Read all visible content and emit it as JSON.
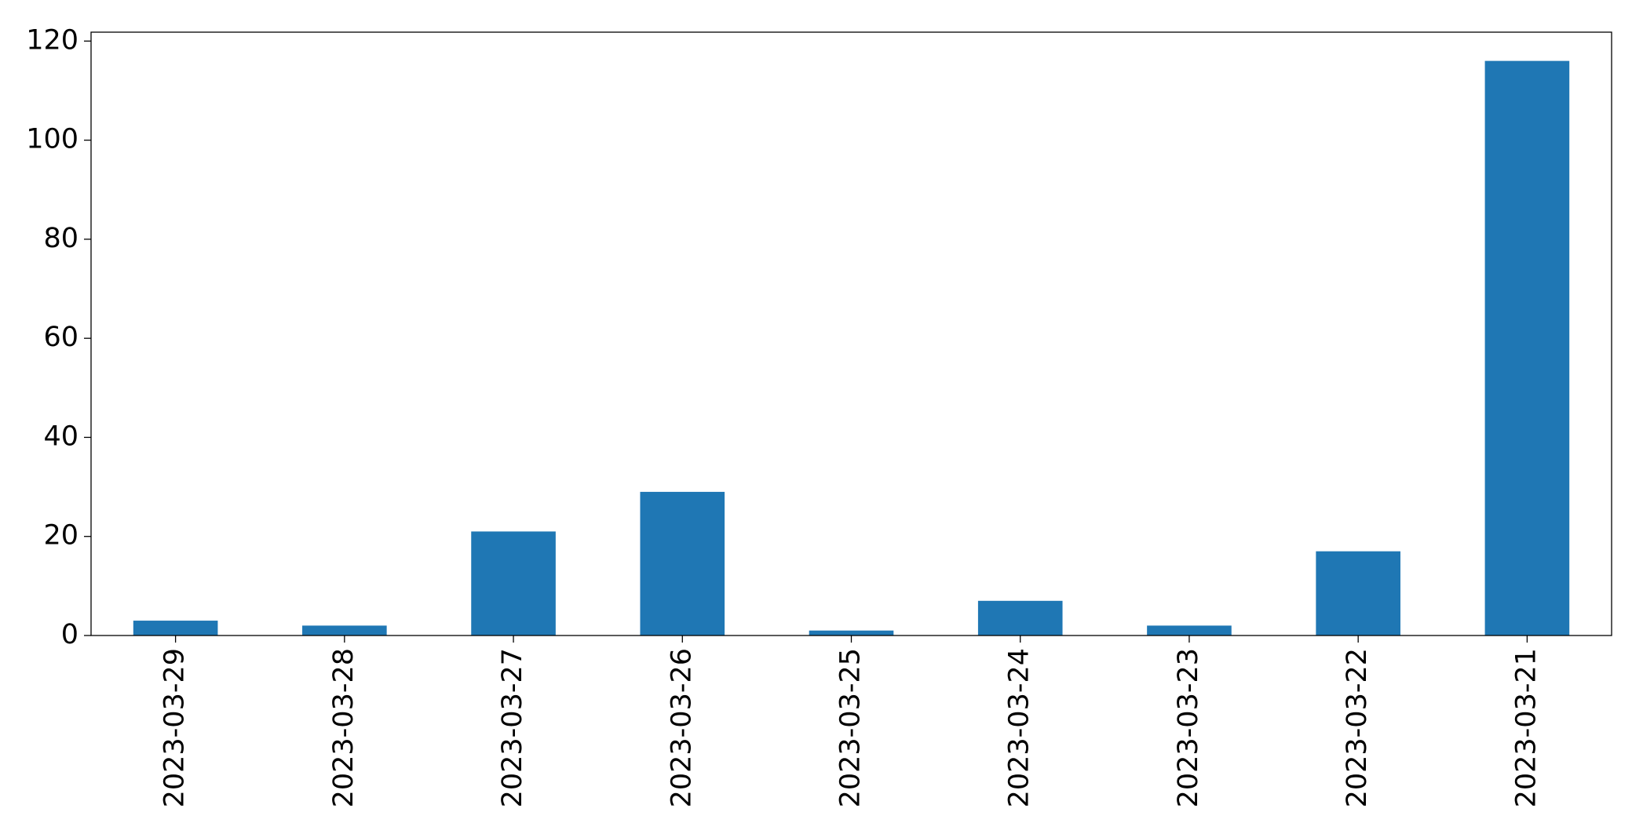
{
  "chart_data": {
    "type": "bar",
    "categories": [
      "2023-03-29",
      "2023-03-28",
      "2023-03-27",
      "2023-03-26",
      "2023-03-25",
      "2023-03-24",
      "2023-03-23",
      "2023-03-22",
      "2023-03-21"
    ],
    "values": [
      3,
      2,
      21,
      29,
      1,
      7,
      2,
      17,
      116
    ],
    "color": "#1f77b4",
    "ylim": [
      0,
      121.8
    ],
    "yticks": [
      0,
      20,
      40,
      60,
      80,
      100,
      120
    ],
    "grid": false
  }
}
